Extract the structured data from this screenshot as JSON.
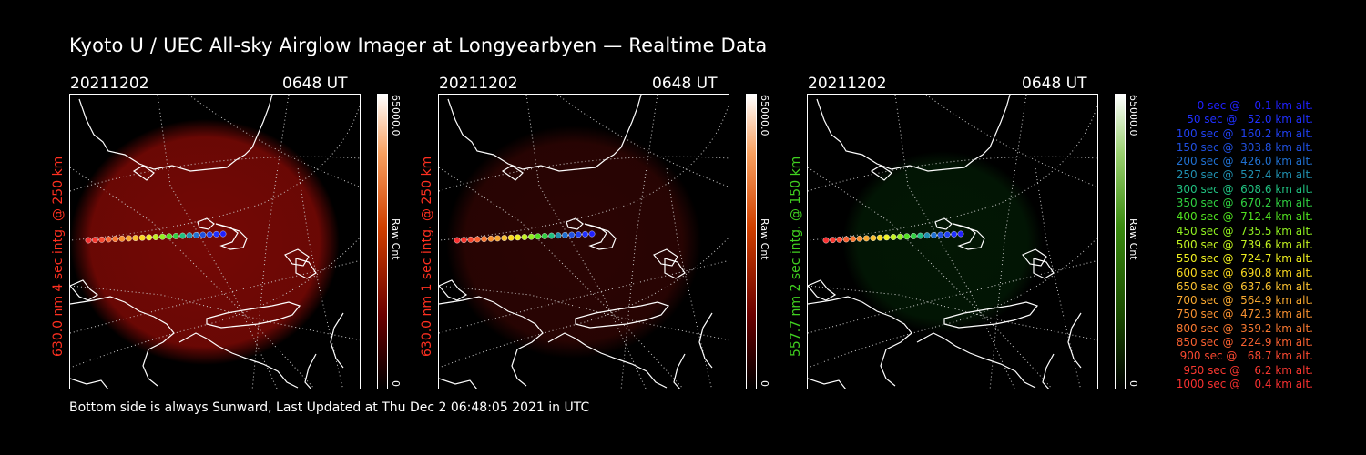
{
  "title": "Kyoto U / UEC All-sky Airglow Imager at Longyearbyen — Realtime Data",
  "footer": "Bottom side is always Sunward, Last Updated at Thu Dec  2 06:48:05 2021 in UTC",
  "colors": {
    "background": "#000000",
    "red_channel": "#ff2a1a",
    "green_channel": "#3fd21e"
  },
  "panels": [
    {
      "date": "20211202",
      "time": "0648 UT",
      "ylabel": "630.0 nm 4 sec intg. @ 250 km",
      "ylabel_color": "#ff3020",
      "colorbar_max": "65000.0",
      "colorbar_min": "0",
      "colorbar_unit": "Raw Cnt",
      "colorbar_scheme": "red"
    },
    {
      "date": "20211202",
      "time": "0648 UT",
      "ylabel": "630.0 nm 1 sec intg. @ 250 km",
      "ylabel_color": "#ff3020",
      "colorbar_max": "65000.0",
      "colorbar_min": "0",
      "colorbar_unit": "Raw Cnt",
      "colorbar_scheme": "red"
    },
    {
      "date": "20211202",
      "time": "0648 UT",
      "ylabel": "557.7 nm 2 sec intg. @ 150 km",
      "ylabel_color": "#40d020",
      "colorbar_max": "65000.0",
      "colorbar_min": "0",
      "colorbar_unit": "Raw Cnt",
      "colorbar_scheme": "green"
    }
  ],
  "legend": [
    {
      "text": "   0 sec @    0.1 km alt.",
      "color": "#2020ff"
    },
    {
      "text": "  50 sec @   52.0 km alt.",
      "color": "#2030ff"
    },
    {
      "text": " 100 sec @  160.2 km alt.",
      "color": "#2040f0"
    },
    {
      "text": " 150 sec @  303.8 km alt.",
      "color": "#2050e0"
    },
    {
      "text": " 200 sec @  426.0 km alt.",
      "color": "#2070d0"
    },
    {
      "text": " 250 sec @  527.4 km alt.",
      "color": "#2090b0"
    },
    {
      "text": " 300 sec @  608.6 km alt.",
      "color": "#20c080"
    },
    {
      "text": " 350 sec @  670.2 km alt.",
      "color": "#30d040"
    },
    {
      "text": " 400 sec @  712.4 km alt.",
      "color": "#50e020"
    },
    {
      "text": " 450 sec @  735.5 km alt.",
      "color": "#90f020"
    },
    {
      "text": " 500 sec @  739.6 km alt.",
      "color": "#c0f020"
    },
    {
      "text": " 550 sec @  724.7 km alt.",
      "color": "#f0f020"
    },
    {
      "text": " 600 sec @  690.8 km alt.",
      "color": "#f8d820"
    },
    {
      "text": " 650 sec @  637.6 km alt.",
      "color": "#f8c030"
    },
    {
      "text": " 700 sec @  564.9 km alt.",
      "color": "#f8a830"
    },
    {
      "text": " 750 sec @  472.3 km alt.",
      "color": "#f89030"
    },
    {
      "text": " 800 sec @  359.2 km alt.",
      "color": "#f87830"
    },
    {
      "text": " 850 sec @  224.9 km alt.",
      "color": "#f86030"
    },
    {
      "text": " 900 sec @   68.7 km alt.",
      "color": "#f84830"
    },
    {
      "text": " 950 sec @    6.2 km alt.",
      "color": "#f83830"
    },
    {
      "text": "1000 sec @    0.4 km alt.",
      "color": "#f83030"
    }
  ]
}
